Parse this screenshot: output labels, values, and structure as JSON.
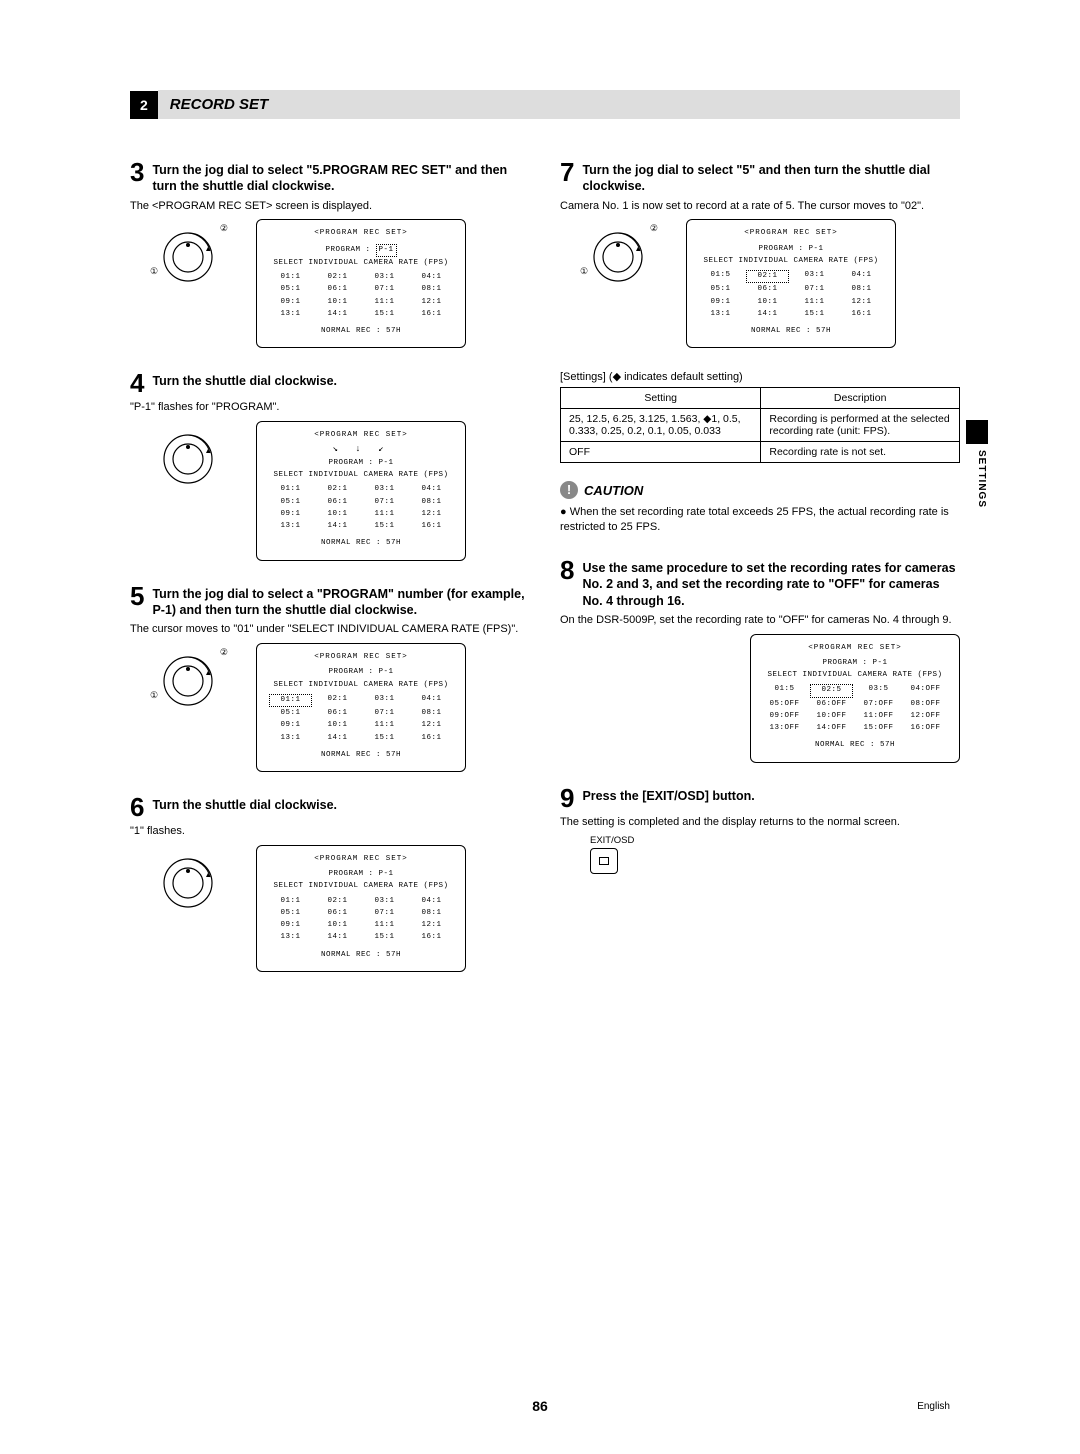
{
  "header": {
    "num": "2",
    "title": "RECORD SET"
  },
  "sideTab": "SETTINGS",
  "pageNum": "86",
  "lang": "English",
  "screen": {
    "title": "<PROGRAM REC SET>",
    "program_prefix": "PROGRAM :",
    "program_val": "P-1",
    "subtitle": "SELECT INDIVIDUAL CAMERA RATE (FPS)",
    "bottom": "NORMAL REC   :      57H"
  },
  "grid_default": [
    "01:1",
    "02:1",
    "03:1",
    "04:1",
    "05:1",
    "06:1",
    "07:1",
    "08:1",
    "09:1",
    "10:1",
    "11:1",
    "12:1",
    "13:1",
    "14:1",
    "15:1",
    "16:1"
  ],
  "grid_step7": [
    "01:5",
    "02:1",
    "03:1",
    "04:1",
    "05:1",
    "06:1",
    "07:1",
    "08:1",
    "09:1",
    "10:1",
    "11:1",
    "12:1",
    "13:1",
    "14:1",
    "15:1",
    "16:1"
  ],
  "grid_step8": [
    "01:5",
    "02:5",
    "03:5",
    "04:OFF",
    "05:OFF",
    "06:OFF",
    "07:OFF",
    "08:OFF",
    "09:OFF",
    "10:OFF",
    "11:OFF",
    "12:OFF",
    "13:OFF",
    "14:OFF",
    "15:OFF",
    "16:OFF"
  ],
  "steps": {
    "s3": {
      "num": "3",
      "title": "Turn the jog dial to select \"5.PROGRAM REC SET\" and then turn the shuttle dial clockwise.",
      "body": "The <PROGRAM REC SET> screen is displayed."
    },
    "s4": {
      "num": "4",
      "title": "Turn the shuttle dial clockwise.",
      "body": "\"P-1\" flashes for \"PROGRAM\"."
    },
    "s5": {
      "num": "5",
      "title": "Turn the jog dial to select a \"PROGRAM\" number (for example, P-1) and then turn the shuttle dial clockwise.",
      "body": "The cursor moves to \"01\" under \"SELECT INDIVIDUAL CAMERA RATE (FPS)\"."
    },
    "s6": {
      "num": "6",
      "title": "Turn the shuttle dial clockwise.",
      "body": "\"1\" flashes."
    },
    "s7": {
      "num": "7",
      "title": "Turn the jog dial to select \"5\" and then turn the shuttle dial clockwise.",
      "body": "Camera No. 1 is now set to record at a rate of 5. The cursor moves to \"02\"."
    },
    "s8": {
      "num": "8",
      "title": "Use the same procedure to set the recording rates for cameras No. 2 and 3, and set the recording rate to \"OFF\" for cameras No. 4 through 16.",
      "body": "On the DSR-5009P, set the recording rate to \"OFF\" for cameras No. 4 through 9."
    },
    "s9": {
      "num": "9",
      "title": "Press the [EXIT/OSD] button.",
      "body": "The setting is completed and the display returns to the normal screen."
    }
  },
  "settingsNote": "[Settings] (◆ indicates default setting)",
  "table": {
    "h1": "Setting",
    "h2": "Description",
    "r1c1": "25, 12.5, 6.25, 3.125, 1.563, ◆1, 0.5, 0.333, 0.25, 0.2, 0.1, 0.05, 0.033",
    "r1c2": "Recording is performed at the selected recording rate (unit: FPS).",
    "r2c1": "OFF",
    "r2c2": "Recording rate is not set."
  },
  "caution": {
    "title": "CAUTION",
    "body": "When the set recording rate total exceeds 25 FPS, the actual recording rate is restricted to 25 FPS."
  },
  "exitLabel": "EXIT/OSD"
}
